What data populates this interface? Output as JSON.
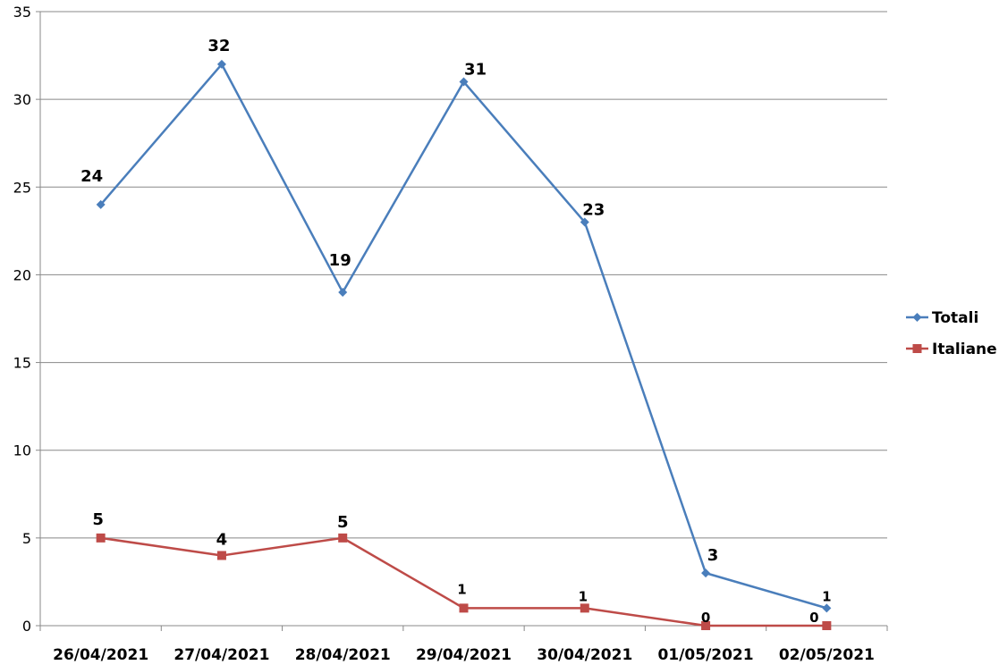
{
  "chart_data": {
    "type": "line",
    "categories": [
      "26/04/2021",
      "27/04/2021",
      "28/04/2021",
      "29/04/2021",
      "30/04/2021",
      "01/05/2021",
      "02/05/2021"
    ],
    "series": [
      {
        "name": "Totali",
        "values": [
          24,
          32,
          19,
          31,
          23,
          3,
          1
        ],
        "color": "#4a7ebb",
        "marker": "diamond"
      },
      {
        "name": "Italiane",
        "values": [
          5,
          4,
          5,
          1,
          1,
          0,
          0
        ],
        "color": "#be4b48",
        "marker": "square"
      }
    ],
    "y_ticks": [
      0,
      5,
      10,
      15,
      20,
      25,
      30,
      35
    ],
    "ylim": [
      0,
      35
    ],
    "grid": true,
    "legend": "right",
    "data_labels": true
  }
}
